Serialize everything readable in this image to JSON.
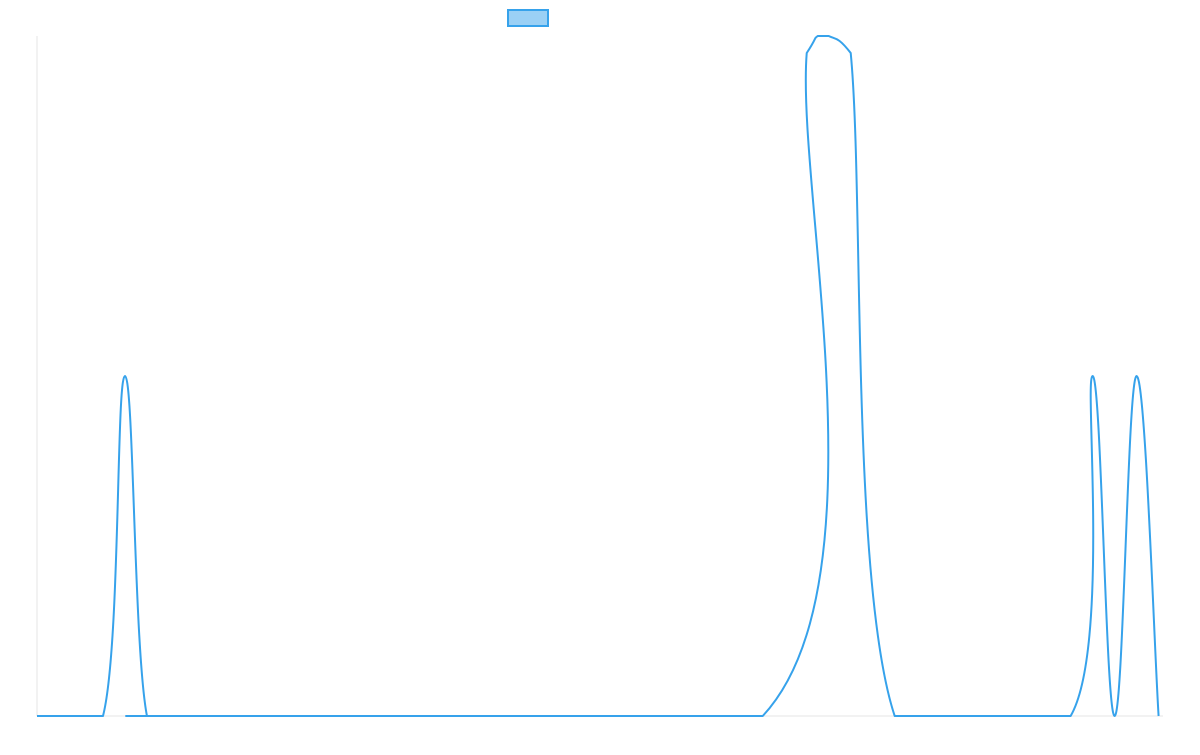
{
  "chart_data": {
    "type": "line",
    "title": "",
    "xlabel": "",
    "ylabel": "",
    "grid": false,
    "legend": {
      "placement": "top-center",
      "entries": [
        {
          "name": "",
          "fill": "#9ad0f5",
          "stroke": "#36a2eb"
        }
      ]
    },
    "xlim": [
      0,
      25.6
    ],
    "ylim": [
      0,
      2
    ],
    "series": [
      {
        "name": "",
        "color": "#36a2eb",
        "x": [
          0,
          1.5,
          2,
          2.5,
          3.5,
          16.5,
          17.5,
          17.75,
          18,
          18.5,
          19.5,
          23.5,
          24,
          24.5,
          25,
          25.5
        ],
        "y": [
          0,
          0,
          1,
          0,
          0,
          0,
          1.95,
          2,
          2,
          1.95,
          0,
          0,
          1,
          0,
          1,
          0
        ]
      }
    ]
  }
}
